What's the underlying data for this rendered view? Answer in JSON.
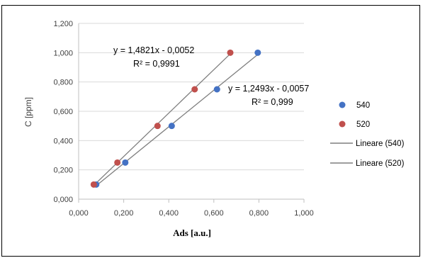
{
  "chart_data": {
    "type": "scatter",
    "title": "",
    "xlabel": "Ads [a.u.]",
    "ylabel": "C [ppm]",
    "xlim": [
      0,
      1
    ],
    "ylim": [
      0,
      1.2
    ],
    "x_ticks": [
      "0,000",
      "0,200",
      "0,400",
      "0,600",
      "0,800",
      "1,000"
    ],
    "y_ticks": [
      "0,000",
      "0,200",
      "0,400",
      "0,600",
      "0,800",
      "1,000",
      "1,200"
    ],
    "grid": "horizontal",
    "legend_position": "right",
    "series": [
      {
        "name": "540",
        "color": "#4472c4",
        "points": [
          [
            0.078,
            0.1
          ],
          [
            0.207,
            0.25
          ],
          [
            0.413,
            0.5
          ],
          [
            0.614,
            0.75
          ],
          [
            0.795,
            1.0
          ]
        ]
      },
      {
        "name": "520",
        "color": "#c0504d",
        "points": [
          [
            0.067,
            0.1
          ],
          [
            0.172,
            0.25
          ],
          [
            0.35,
            0.5
          ],
          [
            0.515,
            0.75
          ],
          [
            0.673,
            1.0
          ]
        ]
      }
    ],
    "trendlines": [
      {
        "name": "Lineare (540)",
        "series": "540",
        "slope": 1.2493,
        "intercept": -0.0057,
        "x_range": [
          0.078,
          0.795
        ],
        "equation": "y = 1,2493x - 0,0057",
        "r2": "R² = 0,999",
        "color": "#7f7f7f"
      },
      {
        "name": "Lineare (520)",
        "series": "520",
        "slope": 1.4821,
        "intercept": -0.0052,
        "x_range": [
          0.067,
          0.673
        ],
        "equation": "y = 1,4821x - 0,0052",
        "r2": "R² = 0,9991",
        "color": "#7f7f7f"
      }
    ]
  }
}
